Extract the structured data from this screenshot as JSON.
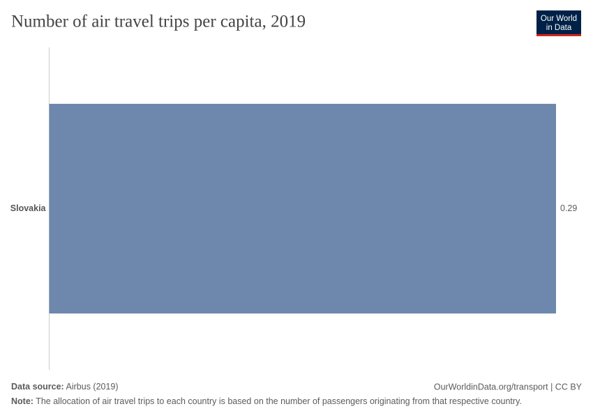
{
  "chart_data": {
    "type": "bar",
    "orientation": "horizontal",
    "title": "Number of air travel trips per capita, 2019",
    "logo": [
      "Our World",
      "in Data"
    ],
    "categories": [
      "Slovakia"
    ],
    "values": [
      0.29
    ],
    "color": "#6e87ad",
    "xlim": [
      0,
      0.29
    ],
    "source_label": "Data source:",
    "source": "Airbus (2019)",
    "footer_link": "OurWorldinData.org/transport | CC BY",
    "note_label": "Note:",
    "note": "The allocation of air travel trips to each country is based on the number of passengers originating from that respective country."
  }
}
